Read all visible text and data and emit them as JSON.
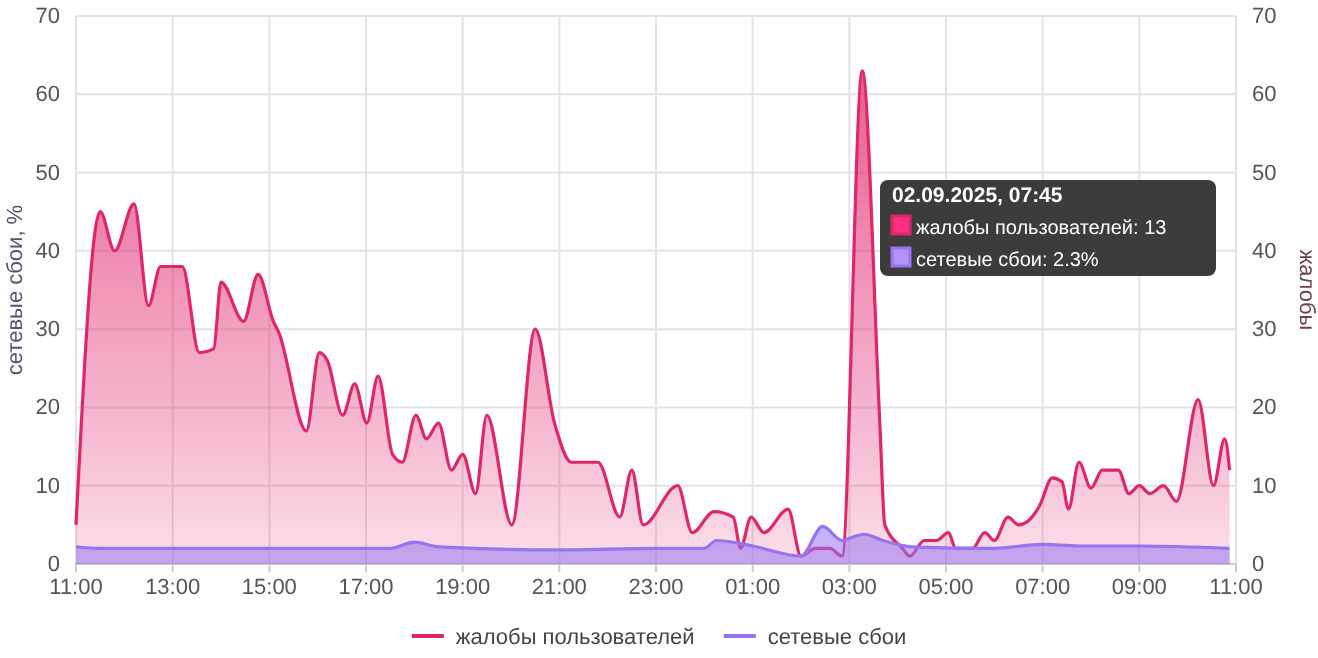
{
  "chart_data": {
    "type": "area",
    "xlim": [
      "2025-09-01T11:00",
      "2025-09-02T11:00"
    ],
    "xticks": [
      {
        "value": "2025-09-01T11:00",
        "label": "11:00"
      },
      {
        "value": "2025-09-01T13:00",
        "label": "13:00"
      },
      {
        "value": "2025-09-01T15:00",
        "label": "15:00"
      },
      {
        "value": "2025-09-01T17:00",
        "label": "17:00"
      },
      {
        "value": "2025-09-01T19:00",
        "label": "19:00"
      },
      {
        "value": "2025-09-01T21:00",
        "label": "21:00"
      },
      {
        "value": "2025-09-01T23:00",
        "label": "23:00"
      },
      {
        "value": "2025-09-02T01:00",
        "label": "01:00"
      },
      {
        "value": "2025-09-02T03:00",
        "label": "03:00"
      },
      {
        "value": "2025-09-02T05:00",
        "label": "05:00"
      },
      {
        "value": "2025-09-02T07:00",
        "label": "07:00"
      },
      {
        "value": "2025-09-02T09:00",
        "label": "09:00"
      },
      {
        "value": "2025-09-02T11:00",
        "label": "11:00"
      }
    ],
    "ylim": [
      0,
      70
    ],
    "yticks": [
      0,
      10,
      20,
      30,
      40,
      50,
      60,
      70
    ],
    "y2lim": [
      0,
      70
    ],
    "y2ticks": [
      0,
      10,
      20,
      30,
      40,
      50,
      60,
      70
    ],
    "ylabel": "сетевые сбои, %",
    "y2label": "жалобы",
    "grid": true,
    "legend": "bottom",
    "marker": "none",
    "line_style": "solid",
    "annotations": [
      "02.09.2025, 07:45",
      "жалобы пользователей: 13",
      "сетевые сбои: 2.3%"
    ],
    "series": [
      {
        "name": "жалобы пользователей",
        "color": "#e0266a",
        "axis": "y2",
        "x": [
          "2025-09-01T11:00",
          "2025-09-01T11:30",
          "2025-09-01T11:48",
          "2025-09-01T12:12",
          "2025-09-01T12:30",
          "2025-09-01T12:45",
          "2025-09-01T13:12",
          "2025-09-01T13:33",
          "2025-09-01T13:51",
          "2025-09-01T14:00",
          "2025-09-01T14:28",
          "2025-09-01T14:46",
          "2025-09-01T15:05",
          "2025-09-01T15:12",
          "2025-09-01T15:46",
          "2025-09-01T16:02",
          "2025-09-01T16:12",
          "2025-09-01T16:31",
          "2025-09-01T16:46",
          "2025-09-01T17:01",
          "2025-09-01T17:15",
          "2025-09-01T17:33",
          "2025-09-01T17:45",
          "2025-09-01T18:02",
          "2025-09-01T18:15",
          "2025-09-01T18:30",
          "2025-09-01T18:46",
          "2025-09-01T19:00",
          "2025-09-01T19:16",
          "2025-09-01T19:30",
          "2025-09-01T20:01",
          "2025-09-01T20:30",
          "2025-09-01T20:54",
          "2025-09-01T21:15",
          "2025-09-01T21:48",
          "2025-09-01T22:15",
          "2025-09-01T22:30",
          "2025-09-01T22:44",
          "2025-09-01T23:27",
          "2025-09-01T23:45",
          "2025-09-02T00:12",
          "2025-09-02T00:36",
          "2025-09-02T00:45",
          "2025-09-02T00:58",
          "2025-09-02T01:14",
          "2025-09-02T01:44",
          "2025-09-02T02:00",
          "2025-09-02T02:18",
          "2025-09-02T02:36",
          "2025-09-02T02:51",
          "2025-09-02T03:16",
          "2025-09-02T03:38",
          "2025-09-02T03:44",
          "2025-09-02T04:06",
          "2025-09-02T04:15",
          "2025-09-02T04:33",
          "2025-09-02T04:48",
          "2025-09-02T05:03",
          "2025-09-02T05:12",
          "2025-09-02T05:33",
          "2025-09-02T05:48",
          "2025-09-02T06:00",
          "2025-09-02T06:17",
          "2025-09-02T06:30",
          "2025-09-02T06:42",
          "2025-09-02T06:56",
          "2025-09-02T07:12",
          "2025-09-02T07:24",
          "2025-09-02T07:32",
          "2025-09-02T07:45",
          "2025-09-02T08:00",
          "2025-09-02T08:14",
          "2025-09-02T08:34",
          "2025-09-02T08:47",
          "2025-09-02T09:00",
          "2025-09-02T09:13",
          "2025-09-02T09:30",
          "2025-09-02T09:46",
          "2025-09-02T10:13",
          "2025-09-02T10:32",
          "2025-09-02T10:46",
          "2025-09-02T10:52"
        ],
        "values": [
          5,
          45,
          40,
          46,
          33,
          38,
          38,
          27,
          27.5,
          36,
          31,
          37,
          31,
          29.5,
          17,
          27,
          26,
          19,
          23,
          18,
          24,
          14,
          13,
          19,
          16,
          18,
          12,
          14,
          9,
          19,
          5,
          30,
          18,
          13,
          13,
          6,
          12,
          5,
          10,
          4,
          6.7,
          6,
          2,
          6,
          4,
          7,
          1,
          2,
          2,
          1,
          63,
          17.6,
          5,
          2,
          1,
          3,
          3,
          4,
          2,
          2,
          4,
          3,
          6,
          5,
          5.5,
          7.4,
          11,
          10.5,
          7,
          13,
          9.7,
          12,
          12,
          9,
          10,
          9,
          10,
          8,
          21,
          10,
          16,
          12
        ]
      },
      {
        "name": "сетевые сбои",
        "color": "#9575f0",
        "axis": "y",
        "x": [
          "2025-09-01T11:00",
          "2025-09-01T11:30",
          "2025-09-01T14:00",
          "2025-09-01T17:30",
          "2025-09-01T18:00",
          "2025-09-01T18:30",
          "2025-09-01T21:00",
          "2025-09-01T23:00",
          "2025-09-02T00:00",
          "2025-09-02T00:15",
          "2025-09-02T01:00",
          "2025-09-02T02:00",
          "2025-09-02T02:27",
          "2025-09-02T02:51",
          "2025-09-02T03:06",
          "2025-09-02T03:18",
          "2025-09-02T03:42",
          "2025-09-02T04:18",
          "2025-09-02T06:00",
          "2025-09-02T07:00",
          "2025-09-02T07:45",
          "2025-09-02T09:00",
          "2025-09-02T10:52"
        ],
        "values": [
          2.2,
          2,
          2,
          2,
          2.8,
          2.2,
          1.8,
          2,
          2,
          3,
          2.3,
          1,
          4.8,
          3,
          3.5,
          3.8,
          3,
          2.2,
          2,
          2.5,
          2.3,
          2.3,
          2
        ]
      }
    ]
  }
}
